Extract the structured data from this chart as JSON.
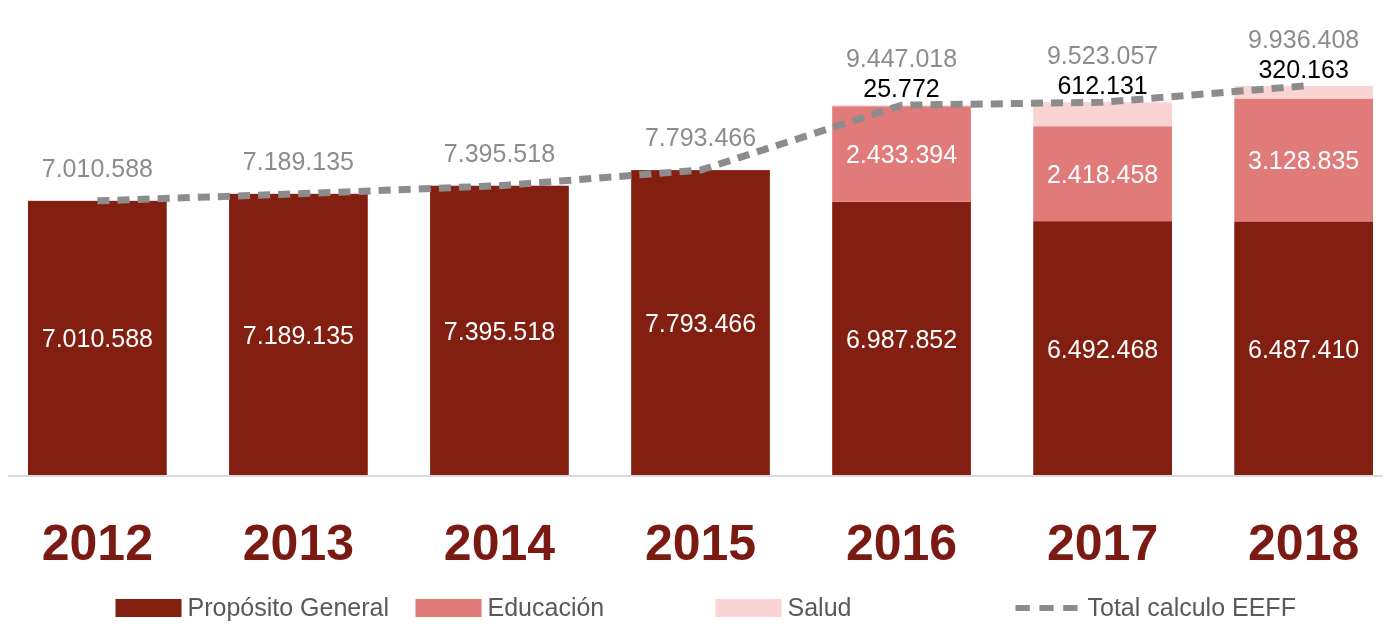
{
  "chart_data": {
    "type": "bar",
    "stacked": true,
    "categories": [
      "2012",
      "2013",
      "2014",
      "2015",
      "2016",
      "2017",
      "2018"
    ],
    "tick_labels": "x",
    "legend": "bottom",
    "series": [
      {
        "name": "Propósito General",
        "color": "#831f11",
        "values": [
          7010588,
          7189135,
          7395518,
          7793466,
          6987852,
          6492468,
          6487410
        ],
        "value_labels": [
          "7.010.588",
          "7.189.135",
          "7.395.518",
          "7.793.466",
          "6.987.852",
          "6.492.468",
          "6.487.410"
        ]
      },
      {
        "name": "Educación",
        "color": "#e07b7a",
        "values": [
          null,
          null,
          null,
          null,
          2433394,
          2418458,
          3128835
        ],
        "value_labels": [
          null,
          null,
          null,
          null,
          "2.433.394",
          "2.418.458",
          "3.128.835"
        ]
      },
      {
        "name": "Salud",
        "color": "#f9d4d3",
        "values": [
          null,
          null,
          null,
          null,
          25772,
          612131,
          320163
        ],
        "value_labels": [
          null,
          null,
          null,
          null,
          "25.772",
          "612.131",
          "320.163"
        ]
      },
      {
        "name": "Total calculo EEFF",
        "type": "line",
        "color": "#8c8c8c",
        "line_style": "dashed",
        "marker": "none",
        "values": [
          7010588,
          7189135,
          7395518,
          7793466,
          9447018,
          9523057,
          9936408
        ],
        "value_labels": [
          "7.010.588",
          "7.189.135",
          "7.395.518",
          "7.793.466",
          "9.447.018",
          "9.523.057",
          "9.936.408"
        ]
      }
    ]
  }
}
